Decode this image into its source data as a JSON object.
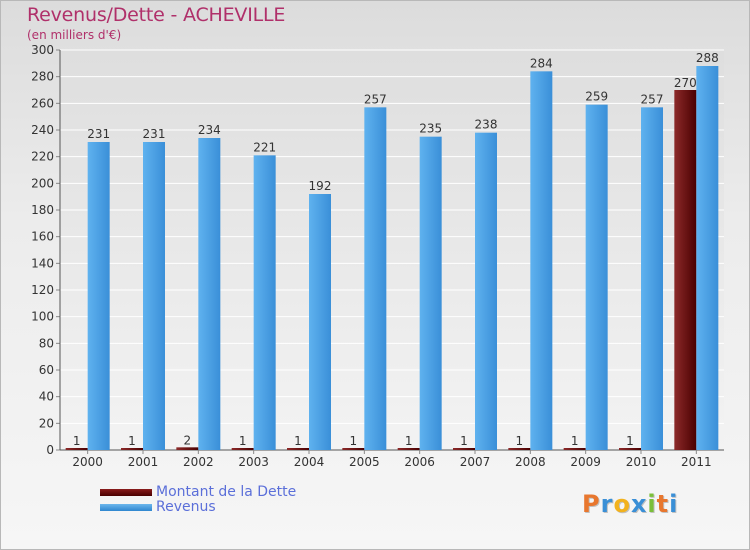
{
  "header": {
    "title": "Revenus/Dette - ACHEVILLE",
    "subtitle": "(en milliers d'€)"
  },
  "chart_data": {
    "type": "bar",
    "title": "Revenus/Dette - ACHEVILLE",
    "ylabel": "(en milliers d'€)",
    "xlabel": "",
    "ylim": [
      0,
      300
    ],
    "yticks": [
      0,
      20,
      40,
      60,
      80,
      100,
      120,
      140,
      160,
      180,
      200,
      220,
      240,
      260,
      280,
      300
    ],
    "grid": true,
    "legend_position": "bottom-left",
    "categories": [
      "2000",
      "2001",
      "2002",
      "2003",
      "2004",
      "2005",
      "2006",
      "2007",
      "2008",
      "2009",
      "2010",
      "2011"
    ],
    "series": [
      {
        "name": "Montant de la Dette",
        "color": "#6b0a0a",
        "values": [
          1,
          1,
          2,
          1,
          1,
          1,
          1,
          1,
          1,
          1,
          1,
          270
        ]
      },
      {
        "name": "Revenus",
        "color": "#4ea3e4",
        "values": [
          231,
          231,
          234,
          221,
          192,
          257,
          235,
          238,
          284,
          259,
          257,
          288
        ]
      }
    ]
  },
  "legend": {
    "items": [
      {
        "label": "Montant de la Dette",
        "color": "#6b0a0a"
      },
      {
        "label": "Revenus",
        "color": "#4ea3e4"
      }
    ]
  },
  "logo": {
    "letters": [
      "P",
      "r",
      "o",
      "x",
      "i",
      "t",
      "i"
    ],
    "colors": [
      "#e8772e",
      "#3a8fd6",
      "#f2b21e",
      "#3a8fd6",
      "#7bbf3a",
      "#e8772e",
      "#3a8fd6"
    ]
  }
}
